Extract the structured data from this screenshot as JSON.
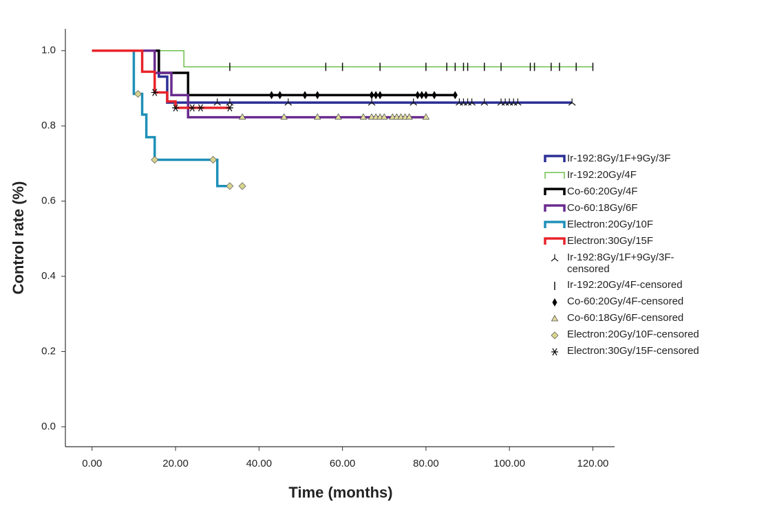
{
  "chart_data": {
    "type": "line",
    "step": "post",
    "xlabel": "Time (months)",
    "ylabel": "Control rate (%)",
    "xlim": [
      -6.4,
      125.2
    ],
    "ylim": [
      -0.053,
      1.058
    ],
    "xticks": [
      {
        "value": 0,
        "label": "0.00"
      },
      {
        "value": 20,
        "label": "20.00"
      },
      {
        "value": 40,
        "label": "40.00"
      },
      {
        "value": 60,
        "label": "60.00"
      },
      {
        "value": 80,
        "label": "80.00"
      },
      {
        "value": 100,
        "label": "100.00"
      },
      {
        "value": 120,
        "label": "120.00"
      }
    ],
    "yticks": [
      {
        "value": 0,
        "label": "0.0"
      },
      0.2,
      0.4,
      0.6,
      0.8,
      {
        "value": 1,
        "label": "1.0"
      }
    ],
    "series": [
      {
        "name": "Ir-192:8Gy/1F+9Gy/3F",
        "color": "#2b2f95",
        "x": [
          0,
          16,
          18,
          115
        ],
        "values": [
          1.0,
          0.931,
          0.862,
          0.862
        ]
      },
      {
        "name": "Ir-192:20Gy/4F",
        "color": "#6cc04a",
        "x": [
          0,
          22,
          120
        ],
        "values": [
          1.0,
          0.957,
          0.957
        ]
      },
      {
        "name": "Co-60:20Gy/4F",
        "color": "#000000",
        "x": [
          0,
          16,
          23,
          87
        ],
        "values": [
          1.0,
          0.941,
          0.882,
          0.882
        ]
      },
      {
        "name": "Co-60:18Gy/6F",
        "color": "#6a2c8f",
        "x": [
          0,
          15,
          19,
          23,
          80
        ],
        "values": [
          1.0,
          0.941,
          0.882,
          0.823,
          0.823
        ]
      },
      {
        "name": "Electron:20Gy/10F",
        "color": "#1e90b8",
        "x": [
          0,
          10,
          12,
          13,
          15,
          30,
          33
        ],
        "values": [
          1.0,
          0.885,
          0.83,
          0.77,
          0.71,
          0.64,
          0.64
        ]
      },
      {
        "name": "Electron:30Gy/15F",
        "color": "#e8242a",
        "x": [
          0,
          12,
          15,
          18,
          20,
          33
        ],
        "values": [
          1.0,
          0.944,
          0.889,
          0.865,
          0.848,
          0.848
        ]
      },
      {
        "name": "Ir-192:8Gy/1F+9Gy/3F-censored",
        "marker": "tri",
        "color": "#111111",
        "x": [
          30,
          33,
          47,
          67,
          77,
          88,
          89,
          90,
          91,
          94,
          98,
          99,
          100,
          101,
          102,
          115
        ],
        "values": [
          0.862,
          0.862,
          0.862,
          0.862,
          0.862,
          0.862,
          0.862,
          0.862,
          0.862,
          0.862,
          0.862,
          0.862,
          0.862,
          0.862,
          0.862,
          0.862
        ]
      },
      {
        "name": "Ir-192:20Gy/4F-censored",
        "marker": "tick",
        "color": "#111111",
        "x": [
          33,
          56,
          60,
          69,
          80,
          85,
          87,
          89,
          90,
          94,
          98,
          105,
          106,
          110,
          112,
          116,
          120
        ],
        "values": [
          0.957,
          0.957,
          0.957,
          0.957,
          0.957,
          0.957,
          0.957,
          0.957,
          0.957,
          0.957,
          0.957,
          0.957,
          0.957,
          0.957,
          0.957,
          0.957,
          0.957
        ]
      },
      {
        "name": "Co-60:20Gy/4F-censored",
        "marker": "diamond",
        "color": "#000000",
        "x": [
          43,
          45,
          51,
          54,
          67,
          68,
          69,
          78,
          79,
          80,
          82,
          87
        ],
        "values": [
          0.882,
          0.882,
          0.882,
          0.882,
          0.882,
          0.882,
          0.882,
          0.882,
          0.882,
          0.882,
          0.882,
          0.882
        ]
      },
      {
        "name": "Co-60:18Gy/6F-censored",
        "marker": "triangle",
        "color": "#e2dc9c",
        "x": [
          36,
          46,
          54,
          59,
          65,
          67,
          68,
          69,
          70,
          72,
          73,
          74,
          75,
          76,
          80
        ],
        "values": [
          0.823,
          0.823,
          0.823,
          0.823,
          0.823,
          0.823,
          0.823,
          0.823,
          0.823,
          0.823,
          0.823,
          0.823,
          0.823,
          0.823,
          0.823
        ]
      },
      {
        "name": "Electron:20Gy/10F-censored",
        "marker": "bigdiamond",
        "color": "#d8d48e",
        "x": [
          11,
          15,
          29,
          33,
          36
        ],
        "values": [
          0.885,
          0.71,
          0.71,
          0.64,
          0.64
        ]
      },
      {
        "name": "Electron:30Gy/15F-censored",
        "marker": "star",
        "color": "#111111",
        "x": [
          15,
          20,
          24,
          26,
          33
        ],
        "values": [
          0.889,
          0.848,
          0.848,
          0.848,
          0.848
        ]
      }
    ]
  }
}
